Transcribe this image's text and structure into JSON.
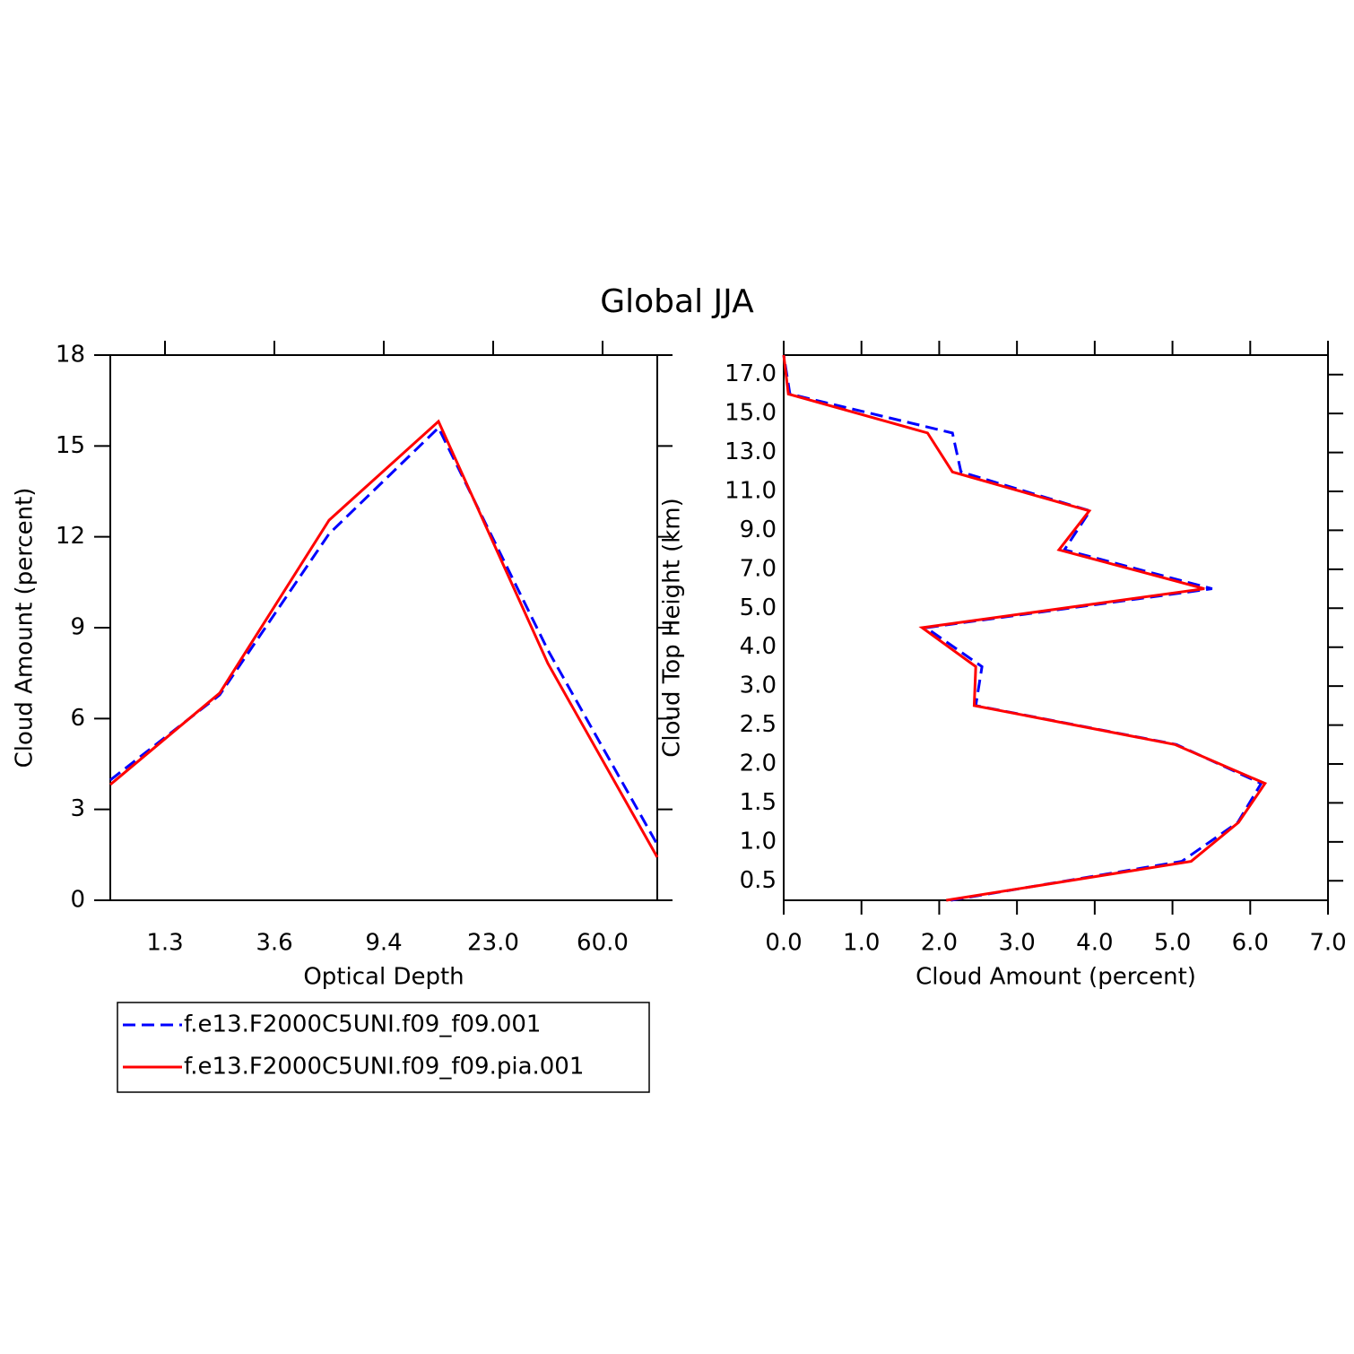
{
  "title": "Global JJA",
  "chart_data": [
    {
      "type": "line",
      "xlabel": "Optical Depth",
      "ylabel": "Cloud Amount (percent)",
      "x": [
        0,
        1,
        2,
        3,
        4,
        5
      ],
      "xlim": [
        0,
        5
      ],
      "xticks": [
        {
          "value": 0.5,
          "label": "1.3"
        },
        {
          "value": 1.5,
          "label": "3.6"
        },
        {
          "value": 2.5,
          "label": "9.4"
        },
        {
          "value": 3.5,
          "label": "23.0"
        },
        {
          "value": 4.5,
          "label": "60.0"
        }
      ],
      "ylim": [
        0,
        18
      ],
      "yticks": [
        0,
        3,
        6,
        9,
        12,
        15,
        18
      ],
      "series": [
        {
          "name": "f.e13.F2000C5UNI.f09_f09.001",
          "color": "#0000ff",
          "line_style": "dashed",
          "values": [
            3.97,
            6.78,
            12.1,
            15.6,
            8.26,
            1.84
          ]
        },
        {
          "name": "f.e13.F2000C5UNI.f09_f09.pia.001",
          "color": "#ff0000",
          "line_style": "solid",
          "values": [
            3.82,
            6.84,
            12.55,
            15.81,
            7.82,
            1.42
          ]
        }
      ]
    },
    {
      "type": "hline",
      "xlabel": "Cloud Amount (percent)",
      "ylabel": "Cloud Top Height (km)",
      "y": [
        0,
        1,
        2,
        3,
        4,
        5,
        6,
        7,
        8,
        9,
        10,
        11,
        12,
        13,
        14
      ],
      "ylim": [
        0,
        14
      ],
      "yticks": [
        {
          "value": 0.5,
          "label": "0.5"
        },
        {
          "value": 1.5,
          "label": "1.0"
        },
        {
          "value": 2.5,
          "label": "1.5"
        },
        {
          "value": 3.5,
          "label": "2.0"
        },
        {
          "value": 4.5,
          "label": "2.5"
        },
        {
          "value": 5.5,
          "label": "3.0"
        },
        {
          "value": 6.5,
          "label": "4.0"
        },
        {
          "value": 7.5,
          "label": "5.0"
        },
        {
          "value": 8.5,
          "label": "7.0"
        },
        {
          "value": 9.5,
          "label": "9.0"
        },
        {
          "value": 10.5,
          "label": "11.0"
        },
        {
          "value": 11.5,
          "label": "13.0"
        },
        {
          "value": 12.5,
          "label": "15.0"
        },
        {
          "value": 13.5,
          "label": "17.0"
        }
      ],
      "xlim": [
        0,
        7
      ],
      "xticks": [
        {
          "value": 0,
          "label": "0.0"
        },
        {
          "value": 1,
          "label": "1.0"
        },
        {
          "value": 2,
          "label": "2.0"
        },
        {
          "value": 3,
          "label": "3.0"
        },
        {
          "value": 4,
          "label": "4.0"
        },
        {
          "value": 5,
          "label": "5.0"
        },
        {
          "value": 6,
          "label": "6.0"
        },
        {
          "value": 7,
          "label": "7.0"
        }
      ],
      "series": [
        {
          "color": "#0000ff",
          "line_style": "dashed",
          "values": [
            2.15,
            5.12,
            5.84,
            6.14,
            5.05,
            2.47,
            2.55,
            1.83,
            5.51,
            3.61,
            3.94,
            2.28,
            2.17,
            0.08,
            0.0
          ]
        },
        {
          "color": "#ff0000",
          "line_style": "solid",
          "values": [
            2.09,
            5.24,
            5.85,
            6.19,
            5.03,
            2.45,
            2.47,
            1.78,
            5.41,
            3.54,
            3.93,
            2.17,
            1.85,
            0.06,
            0.0
          ]
        }
      ]
    }
  ]
}
